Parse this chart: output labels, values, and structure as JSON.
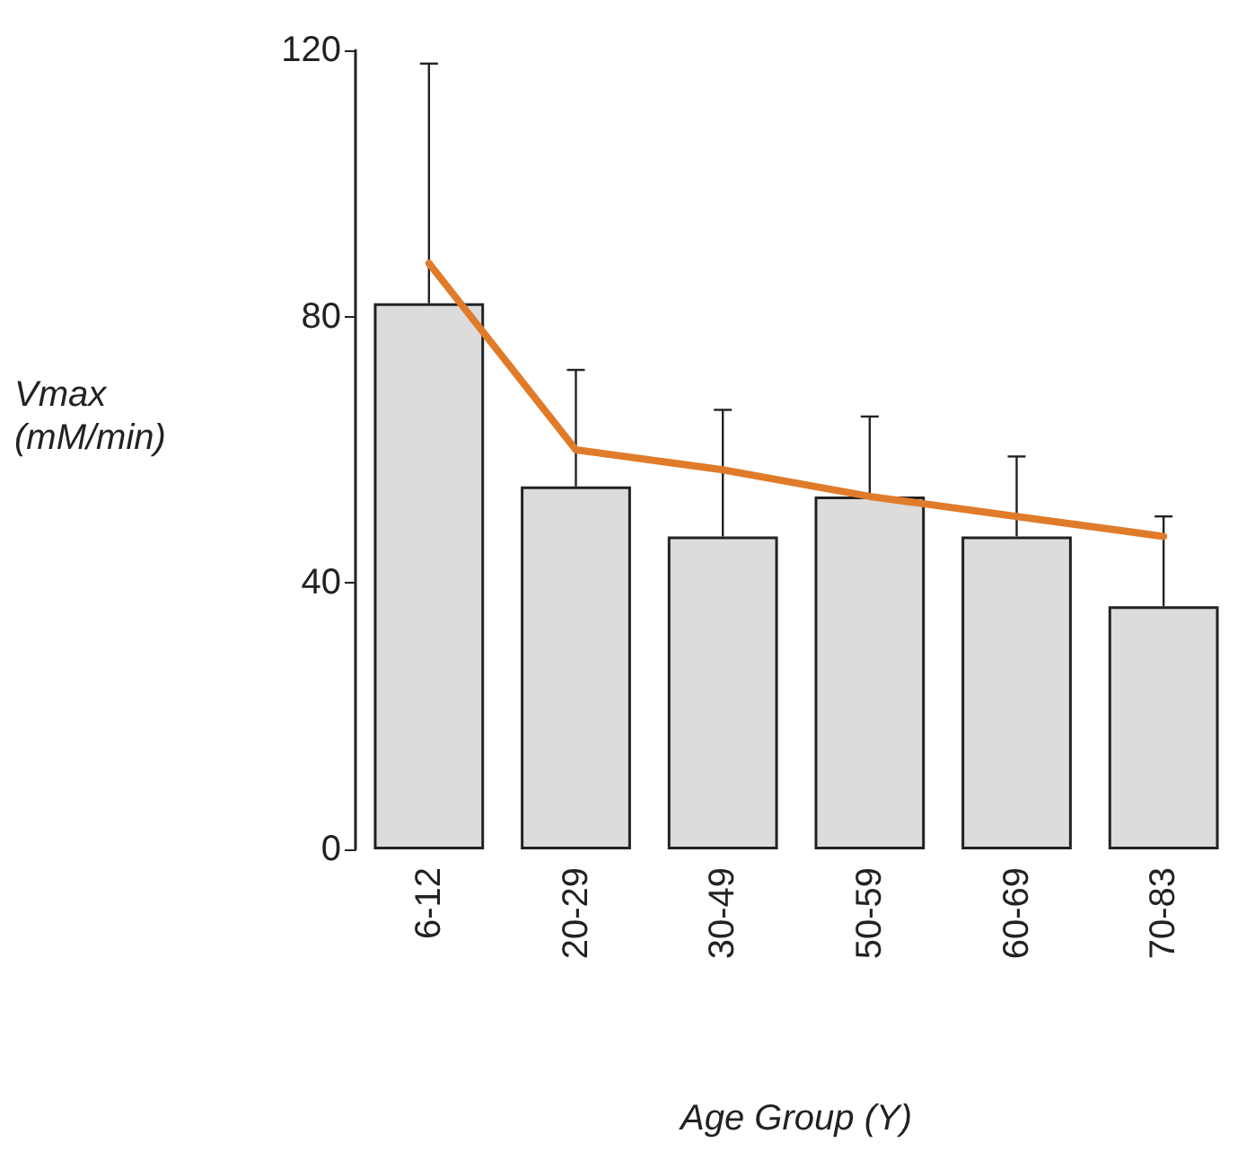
{
  "chart_data": {
    "type": "bar",
    "xlabel": "Age Group (Y)",
    "ylabel": "Vmax\n(mM/min)",
    "categories": [
      "6-12",
      "20-29",
      "30-49",
      "50-59",
      "60-69",
      "70-83"
    ],
    "series": [
      {
        "color": "#dcdcdc",
        "values": [
          82,
          54.5,
          47,
          53,
          47,
          36.5
        ],
        "errors": [
          [
            82,
            118
          ],
          [
            54.5,
            72
          ],
          [
            47,
            66
          ],
          [
            53,
            65
          ],
          [
            47,
            59
          ],
          [
            36.5,
            50
          ]
        ]
      },
      {
        "type": "line",
        "color": "#e07b2a",
        "values": [
          88,
          60,
          57,
          53,
          50,
          47
        ]
      }
    ],
    "ylim": [
      0,
      120
    ],
    "yticks": [
      0,
      40,
      80,
      120
    ],
    "grid": false,
    "line_style": "solid"
  }
}
